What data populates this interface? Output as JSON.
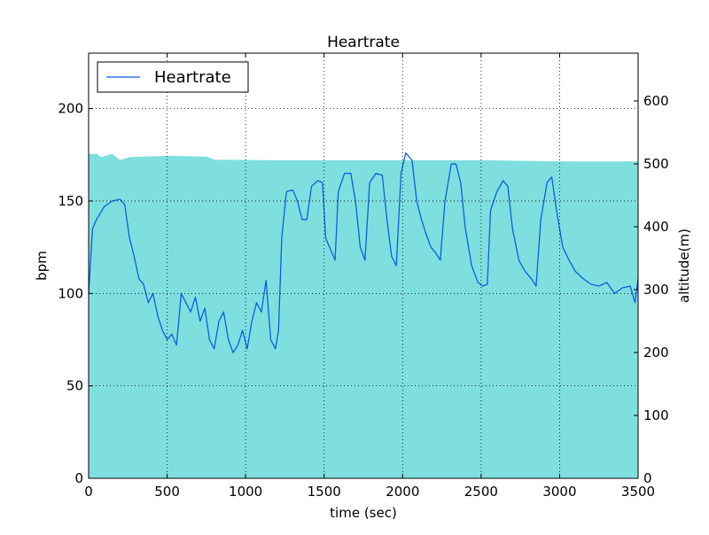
{
  "chart_data": {
    "type": "line",
    "title": "Heartrate",
    "xlabel": "time (sec)",
    "ylabel": "bpm",
    "y2label": "altitude(m)",
    "xlim": [
      0,
      3500
    ],
    "xticks": [
      0,
      500,
      1000,
      1500,
      2000,
      2500,
      3000,
      3500
    ],
    "ylim": [
      0,
      230
    ],
    "yticks": [
      0,
      50,
      100,
      150,
      200
    ],
    "y2lim": [
      0,
      676
    ],
    "y2ticks": [
      0,
      100,
      200,
      300,
      400,
      500,
      600
    ],
    "grid": true,
    "legend": "upper left",
    "series": [
      {
        "type": "area",
        "axis": "y2",
        "color": "#7fdfdf",
        "x": [
          0,
          50,
          80,
          150,
          200,
          260,
          500,
          750,
          800,
          1200,
          1500,
          2000,
          2500,
          2800,
          3000,
          3500
        ],
        "values": [
          515,
          515,
          510,
          515,
          505,
          510,
          512,
          511,
          506,
          505,
          505,
          505,
          505,
          504,
          503,
          503
        ]
      },
      {
        "name": "Heartrate",
        "color": "#0a5fe0",
        "x": [
          0,
          25,
          50,
          100,
          150,
          200,
          230,
          260,
          290,
          320,
          350,
          380,
          410,
          440,
          470,
          500,
          530,
          560,
          590,
          620,
          650,
          680,
          710,
          740,
          770,
          800,
          830,
          860,
          890,
          920,
          950,
          980,
          1010,
          1040,
          1070,
          1100,
          1130,
          1160,
          1190,
          1210,
          1230,
          1260,
          1300,
          1330,
          1360,
          1390,
          1420,
          1460,
          1490,
          1510,
          1540,
          1570,
          1590,
          1630,
          1670,
          1700,
          1730,
          1760,
          1790,
          1830,
          1870,
          1900,
          1930,
          1960,
          1990,
          2020,
          2060,
          2090,
          2120,
          2150,
          2180,
          2210,
          2240,
          2270,
          2310,
          2340,
          2370,
          2400,
          2440,
          2480,
          2510,
          2540,
          2560,
          2600,
          2640,
          2670,
          2700,
          2740,
          2780,
          2820,
          2850,
          2880,
          2920,
          2950,
          2980,
          3020,
          3060,
          3100,
          3150,
          3200,
          3250,
          3300,
          3350,
          3400,
          3450,
          3480,
          3500
        ],
        "values": [
          100,
          135,
          140,
          147,
          150,
          151,
          148,
          130,
          120,
          108,
          105,
          95,
          100,
          88,
          80,
          75,
          78,
          72,
          100,
          95,
          90,
          98,
          85,
          92,
          75,
          70,
          85,
          90,
          75,
          68,
          72,
          80,
          70,
          85,
          95,
          90,
          107,
          75,
          70,
          80,
          130,
          155,
          156,
          150,
          140,
          140,
          158,
          161,
          160,
          130,
          124,
          118,
          155,
          165,
          165,
          150,
          125,
          118,
          160,
          165,
          164,
          140,
          120,
          115,
          165,
          176,
          172,
          150,
          140,
          132,
          125,
          122,
          118,
          150,
          170,
          170,
          160,
          135,
          115,
          106,
          104,
          105,
          145,
          155,
          161,
          158,
          135,
          118,
          112,
          108,
          104,
          140,
          160,
          163,
          145,
          125,
          118,
          112,
          108,
          105,
          104,
          106,
          100,
          103,
          104,
          95,
          108
        ]
      }
    ]
  }
}
